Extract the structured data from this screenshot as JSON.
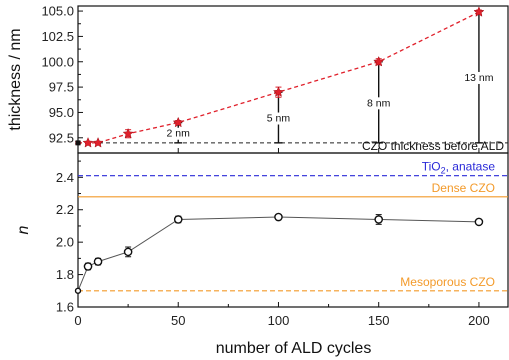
{
  "chart_data": [
    {
      "type": "line",
      "panel": "top",
      "ylabel": "thickness / nm",
      "xlabel": "",
      "xlim": [
        0,
        215
      ],
      "ylim": [
        91.0,
        105.5
      ],
      "yticks": [
        92.5,
        95.0,
        97.5,
        100.0,
        102.5,
        105.0
      ],
      "ytick_labels": [
        "92.5",
        "95.0",
        "97.5",
        "100.0",
        "102.5",
        "105.0"
      ],
      "series": [
        {
          "color": "#e0202b",
          "marker": "star",
          "line_style": "dashed",
          "x": [
            0,
            5,
            10,
            25,
            50,
            100,
            150,
            200
          ],
          "y": [
            92.0,
            92.0,
            92.0,
            92.9,
            94.0,
            97.0,
            100.0,
            104.9
          ],
          "yerr": [
            0.1,
            0.1,
            0.1,
            0.4,
            0.2,
            0.5,
            0.3,
            0.2
          ]
        }
      ],
      "reference_line": {
        "label": "CZO thickness before ALD",
        "y": 92.0,
        "color": "#222222"
      },
      "increments": [
        {
          "x": 50,
          "from": 92.0,
          "to": 94.0,
          "label": "2 nm"
        },
        {
          "x": 100,
          "from": 92.0,
          "to": 97.0,
          "label": "5 nm"
        },
        {
          "x": 150,
          "from": 92.0,
          "to": 100.0,
          "label": "8 nm"
        },
        {
          "x": 200,
          "from": 92.0,
          "to": 105.0,
          "label": "13 nm"
        }
      ],
      "grid": false
    },
    {
      "type": "line",
      "panel": "bottom",
      "ylabel": "n",
      "xlabel": "number of ALD cycles",
      "xlim": [
        0,
        215
      ],
      "ylim": [
        1.6,
        2.55
      ],
      "xticks": [
        0,
        50,
        100,
        150,
        200
      ],
      "xtick_labels": [
        "0",
        "50",
        "100",
        "150",
        "200"
      ],
      "yticks": [
        1.6,
        1.8,
        2.0,
        2.2,
        2.4
      ],
      "ytick_labels": [
        "1.6",
        "1.8",
        "2.0",
        "2.2",
        "2.4"
      ],
      "series": [
        {
          "color": "#222222",
          "marker": "circle-open",
          "line_style": "solid",
          "x": [
            0,
            5,
            10,
            25,
            50,
            100,
            150,
            200
          ],
          "y": [
            1.7,
            1.85,
            1.88,
            1.94,
            2.14,
            2.155,
            2.14,
            2.125
          ],
          "yerr": [
            0.005,
            0.02,
            0.02,
            0.03,
            0.02,
            0.01,
            0.03,
            0.015
          ]
        }
      ],
      "reference_lines": [
        {
          "label_main": "TiO",
          "label_sub": "2",
          "label_rest": ", anatase",
          "y": 2.41,
          "color": "#2a2ad8",
          "style": "dashed"
        },
        {
          "label_main": "Dense CZO",
          "label_sub": "",
          "label_rest": "",
          "y": 2.28,
          "color": "#f39a2a",
          "style": "solid"
        },
        {
          "label_main": "Mesoporous CZO",
          "label_sub": "",
          "label_rest": "",
          "y": 1.7,
          "color": "#f39a2a",
          "style": "dashed"
        }
      ],
      "grid": false
    }
  ]
}
